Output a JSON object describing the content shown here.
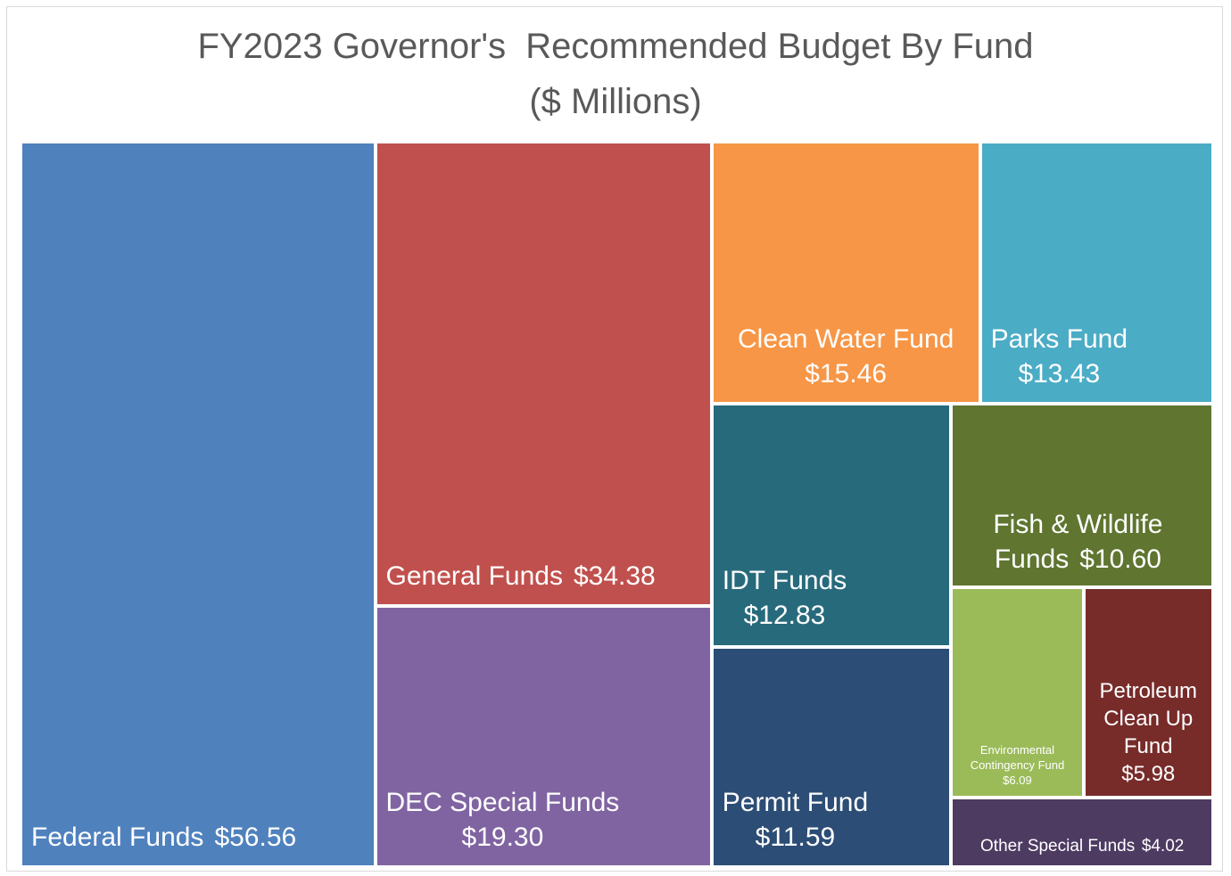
{
  "chart_data": {
    "type": "treemap",
    "title": "FY2023 Governor's  Recommended Budget By Fund",
    "subtitle": "($ Millions)",
    "categories": [
      "Federal Funds",
      "General Funds",
      "DEC Special Funds",
      "Clean Water Fund",
      "Parks Fund",
      "IDT Funds",
      "Permit Fund",
      "Fish & Wildlife Funds",
      "Environmental Contingency Fund",
      "Petroleum Clean Up Fund",
      "Other Special Funds"
    ],
    "values": [
      56.56,
      34.38,
      19.3,
      15.46,
      13.43,
      12.83,
      11.59,
      10.6,
      6.09,
      5.98,
      4.02
    ],
    "value_labels": [
      "$56.56",
      "$34.38",
      "$19.30",
      "$15.46",
      "$13.43",
      "$12.83",
      "$11.59",
      "$10.60",
      "$6.09",
      "$5.98",
      "$4.02"
    ],
    "colors": [
      "#4f81bd",
      "#c0504d",
      "#8064a2",
      "#f79646",
      "#4bacc6",
      "#276a7c",
      "#2c4d75",
      "#5f7530",
      "#9bbb59",
      "#772c2a",
      "#4d3b62"
    ]
  }
}
